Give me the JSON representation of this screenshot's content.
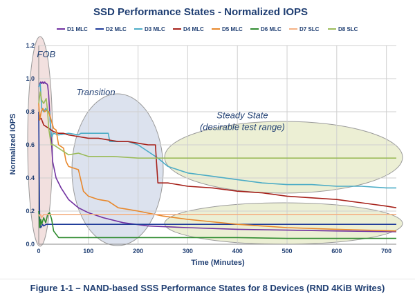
{
  "caption": "Figure 1-1 – NAND-based SSS Performance States for 8 Devices (RND 4KiB Writes)",
  "chart_data": {
    "type": "line",
    "title": "SSD Performance States - Normalized IOPS",
    "xlabel": "Time (Minutes)",
    "ylabel": "Normalized IOPS",
    "xlim": [
      0,
      720
    ],
    "ylim": [
      0,
      1.2
    ],
    "xticks": [
      0,
      100,
      200,
      300,
      400,
      500,
      600,
      700
    ],
    "yticks": [
      0.0,
      0.2,
      0.4,
      0.6,
      0.8,
      1.0,
      1.2
    ],
    "grid": true,
    "legend_position": "top",
    "annotations": [
      {
        "text": "FOB",
        "x": 15,
        "y": 1.13
      },
      {
        "text": "Transition",
        "x": 115,
        "y": 0.9
      },
      {
        "text": "Steady State",
        "x": 410,
        "y": 0.76
      },
      {
        "text": "(desirable test range)",
        "x": 410,
        "y": 0.69
      }
    ],
    "series": [
      {
        "name": "D1 MLC",
        "color": "#7030a0",
        "x": [
          0,
          2,
          4,
          6,
          8,
          10,
          12,
          14,
          16,
          18,
          20,
          24,
          28,
          35,
          45,
          60,
          80,
          100,
          130,
          170,
          220,
          300,
          400,
          500,
          600,
          720
        ],
        "y": [
          0.95,
          0.97,
          0.98,
          0.97,
          0.98,
          0.97,
          0.98,
          0.97,
          0.97,
          0.96,
          0.9,
          0.7,
          0.5,
          0.4,
          0.34,
          0.27,
          0.22,
          0.19,
          0.16,
          0.13,
          0.11,
          0.1,
          0.09,
          0.085,
          0.08,
          0.075
        ]
      },
      {
        "name": "D2 MLC",
        "color": "#1f3b99",
        "x": [
          0,
          1,
          2,
          3,
          4,
          6,
          8,
          10,
          15,
          20,
          40,
          80,
          150,
          250,
          400,
          550,
          720
        ],
        "y": [
          0.8,
          0.4,
          0.15,
          0.11,
          0.1,
          0.11,
          0.12,
          0.11,
          0.12,
          0.12,
          0.12,
          0.12,
          0.12,
          0.12,
          0.12,
          0.12,
          0.12
        ]
      },
      {
        "name": "D3 MLC",
        "color": "#4bacc6",
        "x": [
          0,
          3,
          6,
          10,
          14,
          18,
          22,
          24,
          26,
          30,
          40,
          60,
          80,
          85,
          100,
          120,
          140,
          143,
          150,
          180,
          200,
          240,
          260,
          300,
          350,
          400,
          450,
          500,
          550,
          600,
          650,
          700,
          720
        ],
        "y": [
          0.95,
          0.97,
          0.82,
          0.8,
          0.82,
          0.8,
          0.8,
          0.7,
          0.65,
          0.67,
          0.66,
          0.67,
          0.66,
          0.67,
          0.67,
          0.67,
          0.67,
          0.62,
          0.62,
          0.62,
          0.6,
          0.52,
          0.47,
          0.43,
          0.41,
          0.39,
          0.37,
          0.36,
          0.36,
          0.35,
          0.35,
          0.34,
          0.34
        ]
      },
      {
        "name": "D4 MLC",
        "color": "#a62019",
        "x": [
          0,
          5,
          10,
          15,
          20,
          25,
          30,
          40,
          50,
          60,
          80,
          100,
          120,
          140,
          160,
          180,
          200,
          220,
          235,
          237,
          240,
          260,
          280,
          300,
          350,
          400,
          450,
          500,
          550,
          600,
          650,
          700,
          720
        ],
        "y": [
          0.75,
          0.76,
          0.72,
          0.71,
          0.7,
          0.69,
          0.68,
          0.67,
          0.67,
          0.66,
          0.65,
          0.64,
          0.64,
          0.63,
          0.62,
          0.62,
          0.61,
          0.6,
          0.6,
          0.5,
          0.37,
          0.37,
          0.36,
          0.35,
          0.34,
          0.32,
          0.31,
          0.29,
          0.28,
          0.27,
          0.25,
          0.23,
          0.22
        ]
      },
      {
        "name": "D5 MLC",
        "color": "#e8872a",
        "x": [
          0,
          2,
          5,
          8,
          12,
          16,
          20,
          25,
          30,
          35,
          40,
          50,
          55,
          60,
          70,
          80,
          90,
          100,
          120,
          140,
          160,
          180,
          200,
          250,
          300,
          400,
          500,
          600,
          720
        ],
        "y": [
          0.85,
          0.75,
          0.8,
          0.82,
          0.8,
          0.81,
          0.8,
          0.75,
          0.7,
          0.69,
          0.6,
          0.58,
          0.5,
          0.47,
          0.46,
          0.45,
          0.32,
          0.29,
          0.27,
          0.26,
          0.22,
          0.21,
          0.2,
          0.17,
          0.15,
          0.12,
          0.1,
          0.09,
          0.08
        ]
      },
      {
        "name": "D6 MLC",
        "color": "#2e8b2e",
        "x": [
          0,
          2,
          4,
          6,
          8,
          10,
          14,
          18,
          22,
          26,
          30,
          35,
          40,
          50,
          60,
          100,
          200,
          300,
          400,
          500,
          600,
          720
        ],
        "y": [
          0.2,
          0.1,
          0.15,
          0.12,
          0.14,
          0.16,
          0.13,
          0.18,
          0.19,
          0.15,
          0.08,
          0.06,
          0.04,
          0.04,
          0.04,
          0.04,
          0.04,
          0.04,
          0.04,
          0.035,
          0.035,
          0.035
        ]
      },
      {
        "name": "D7 SLC",
        "color": "#f4b183",
        "x": [
          0,
          2,
          4,
          6,
          8,
          10,
          15,
          20,
          40,
          100,
          200,
          300,
          400,
          500,
          600,
          720
        ],
        "y": [
          0.18,
          0.17,
          0.18,
          0.16,
          0.17,
          0.18,
          0.18,
          0.18,
          0.18,
          0.18,
          0.18,
          0.18,
          0.18,
          0.18,
          0.18,
          0.18
        ]
      },
      {
        "name": "D8 SLC",
        "color": "#9bbb59",
        "x": [
          0,
          3,
          6,
          10,
          15,
          18,
          20,
          25,
          30,
          40,
          50,
          60,
          80,
          100,
          150,
          200,
          300,
          400,
          500,
          600,
          700,
          720
        ],
        "y": [
          0.85,
          0.92,
          0.87,
          0.85,
          0.88,
          0.8,
          0.7,
          0.6,
          0.6,
          0.58,
          0.56,
          0.54,
          0.55,
          0.53,
          0.53,
          0.52,
          0.52,
          0.52,
          0.52,
          0.52,
          0.52,
          0.52
        ]
      }
    ]
  }
}
